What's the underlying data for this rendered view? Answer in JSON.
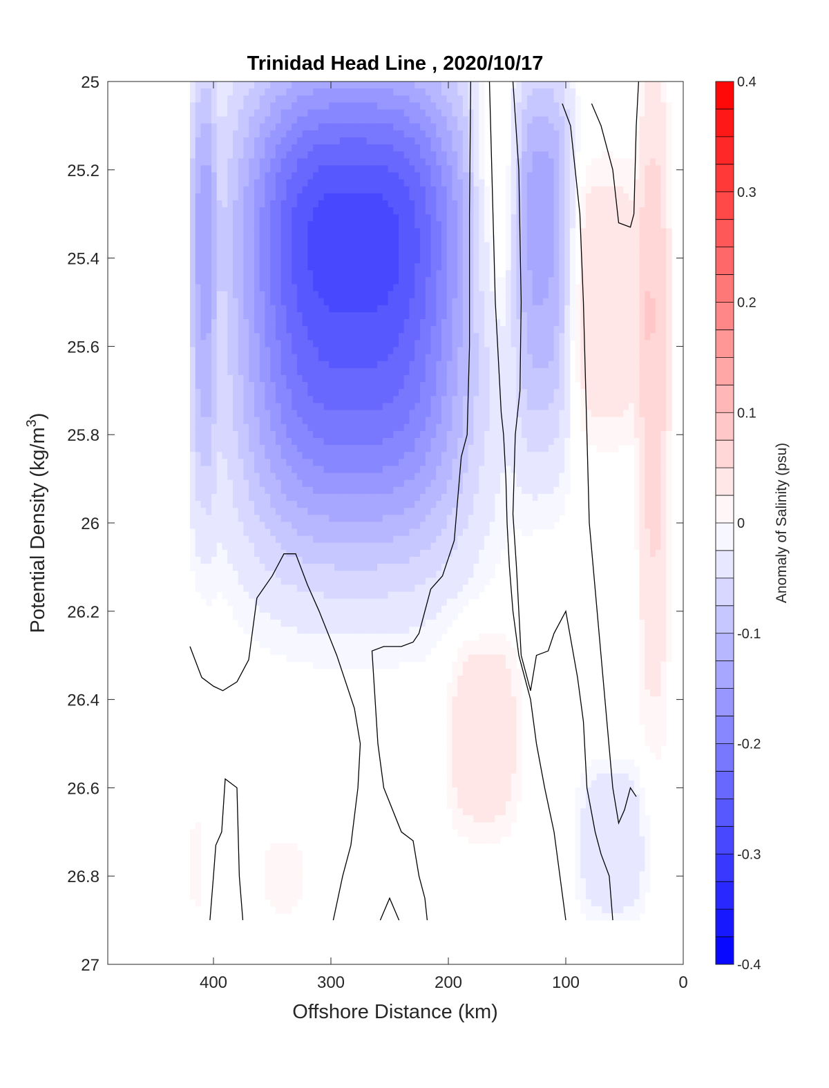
{
  "chart_data": {
    "type": "contour",
    "title": "Trinidad Head Line , 2020/10/17",
    "xlabel": "Offshore Distance (km)",
    "ylabel": "Potential Density (kg/m",
    "ylabel_sup": "3",
    "ylabel_close": ")",
    "xlim": [
      490,
      0
    ],
    "ylim": [
      25,
      27
    ],
    "y_reversed": true,
    "x_reversed": true,
    "xticks": [
      400,
      300,
      200,
      100,
      0
    ],
    "xtick_labels": [
      "400",
      "300",
      "200",
      "100",
      "0"
    ],
    "yticks": [
      25,
      25.2,
      25.4,
      25.6,
      25.8,
      26,
      26.2,
      26.4,
      26.6,
      26.8,
      27
    ],
    "ytick_labels": [
      "25",
      "25.2",
      "25.4",
      "25.6",
      "25.8",
      "26",
      "26.2",
      "26.4",
      "26.6",
      "26.8",
      "27"
    ],
    "colorbar": {
      "label": "Anomaly of Salinity (psu)",
      "range": [
        -0.4,
        0.4
      ],
      "levels": 32,
      "ticks": [
        0.4,
        0.3,
        0.2,
        0.1,
        0,
        -0.1,
        -0.2,
        -0.3,
        -0.4
      ],
      "tick_labels": [
        "0.4",
        "0.3",
        "0.2",
        "0.1",
        "0",
        "-0.1",
        "-0.2",
        "-0.3",
        "-0.4"
      ],
      "colormap": "blue-white-red",
      "min_color": "#0000ff",
      "mid_color": "#ffffff",
      "max_color": "#ff0000"
    },
    "data_extent_x": [
      420,
      10
    ],
    "data_extent_y": [
      25,
      26.9
    ],
    "anomaly_regions": [
      {
        "x": [
          420,
          398
        ],
        "y": [
          25,
          26.05
        ],
        "peak": -0.14
      },
      {
        "x": [
          380,
          180
        ],
        "y": [
          25,
          26.15
        ],
        "peak": -0.38
      },
      {
        "x": [
          182,
          145
        ],
        "y": [
          25,
          25.62
        ],
        "peak": 0.07
      },
      {
        "x": [
          143,
          95
        ],
        "y": [
          25,
          25.92
        ],
        "peak": -0.18
      },
      {
        "x": [
          98,
          35
        ],
        "y": [
          25.2,
          25.8
        ],
        "peak": 0.05
      },
      {
        "x": [
          38,
          12
        ],
        "y": [
          25.05,
          26.55
        ],
        "peak": 0.09
      },
      {
        "x": [
          200,
          140
        ],
        "y": [
          26.25,
          26.7
        ],
        "peak": 0.05
      },
      {
        "x": [
          90,
          30
        ],
        "y": [
          26.55,
          26.9
        ],
        "peak": -0.05
      },
      {
        "x": [
          360,
          320
        ],
        "y": [
          26.7,
          26.9
        ],
        "peak": 0.02
      },
      {
        "x": [
          420,
          410
        ],
        "y": [
          26.65,
          26.9
        ],
        "peak": 0.02
      }
    ],
    "zero_contours": [
      [
        [
          420,
          26.28
        ],
        [
          410,
          26.35
        ],
        [
          400,
          26.37
        ],
        [
          392,
          26.38
        ],
        [
          380,
          26.36
        ],
        [
          370,
          26.31
        ],
        [
          363,
          26.17
        ],
        [
          350,
          26.12
        ],
        [
          340,
          26.07
        ],
        [
          330,
          26.07
        ],
        [
          320,
          26.14
        ],
        [
          310,
          26.2
        ],
        [
          295,
          26.3
        ],
        [
          280,
          26.42
        ],
        [
          275,
          26.5
        ],
        [
          277,
          26.6
        ],
        [
          283,
          26.73
        ],
        [
          290,
          26.8
        ],
        [
          298,
          26.9
        ]
      ],
      [
        [
          403,
          26.9
        ],
        [
          400,
          26.8
        ],
        [
          398,
          26.73
        ],
        [
          393,
          26.7
        ],
        [
          390,
          26.58
        ],
        [
          380,
          26.6
        ],
        [
          378,
          26.8
        ],
        [
          375,
          26.9
        ]
      ],
      [
        [
          258,
          26.9
        ],
        [
          250,
          26.85
        ],
        [
          242,
          26.9
        ]
      ],
      [
        [
          218,
          26.9
        ],
        [
          220,
          26.85
        ],
        [
          225,
          26.8
        ],
        [
          230,
          26.72
        ],
        [
          240,
          26.7
        ],
        [
          255,
          26.6
        ],
        [
          260,
          26.5
        ],
        [
          265,
          26.29
        ],
        [
          255,
          26.28
        ],
        [
          240,
          26.28
        ],
        [
          230,
          26.27
        ],
        [
          225,
          26.25
        ],
        [
          215,
          26.15
        ],
        [
          205,
          26.12
        ],
        [
          195,
          26.04
        ],
        [
          189,
          25.85
        ],
        [
          184,
          25.8
        ],
        [
          182,
          25.6
        ],
        [
          182,
          25.3
        ],
        [
          181,
          25
        ]
      ],
      [
        [
          145,
          25
        ],
        [
          140,
          25.2
        ],
        [
          138,
          25.5
        ],
        [
          139,
          25.7
        ],
        [
          143,
          25.8
        ],
        [
          145,
          25.98
        ],
        [
          142,
          26.1
        ],
        [
          138,
          26.3
        ],
        [
          130,
          26.38
        ],
        [
          125,
          26.3
        ],
        [
          115,
          26.29
        ],
        [
          110,
          26.25
        ],
        [
          100,
          26.2
        ],
        [
          90,
          26.35
        ],
        [
          85,
          26.45
        ],
        [
          82,
          26.6
        ],
        [
          75,
          26.7
        ],
        [
          70,
          26.75
        ],
        [
          63,
          26.8
        ],
        [
          60,
          26.9
        ]
      ],
      [
        [
          100,
          26.9
        ],
        [
          105,
          26.8
        ],
        [
          110,
          26.7
        ],
        [
          118,
          26.6
        ],
        [
          125,
          26.5
        ],
        [
          130,
          26.4
        ],
        [
          140,
          26.3
        ],
        [
          145,
          26.2
        ],
        [
          148,
          26.1
        ],
        [
          150,
          26.0
        ],
        [
          151,
          25.9
        ],
        [
          153,
          25.8
        ],
        [
          155,
          25.75
        ],
        [
          158,
          25.6
        ],
        [
          160,
          25.5
        ],
        [
          162,
          25.3
        ],
        [
          164,
          25.1
        ],
        [
          165,
          25
        ]
      ],
      [
        [
          40,
          26.62
        ],
        [
          45,
          26.6
        ],
        [
          50,
          26.65
        ],
        [
          55,
          26.68
        ],
        [
          60,
          26.6
        ],
        [
          65,
          26.45
        ],
        [
          70,
          26.3
        ],
        [
          75,
          26.15
        ],
        [
          80,
          26.0
        ],
        [
          82,
          25.8
        ],
        [
          83,
          25.7
        ],
        [
          85,
          25.5
        ],
        [
          88,
          25.3
        ],
        [
          92,
          25.2
        ],
        [
          96,
          25.1
        ],
        [
          103,
          25.05
        ]
      ],
      [
        [
          38,
          25
        ],
        [
          40,
          25.1
        ],
        [
          42,
          25.3
        ],
        [
          45,
          25.33
        ],
        [
          55,
          25.32
        ],
        [
          60,
          25.2
        ],
        [
          70,
          25.1
        ],
        [
          78,
          25.05
        ]
      ]
    ]
  }
}
